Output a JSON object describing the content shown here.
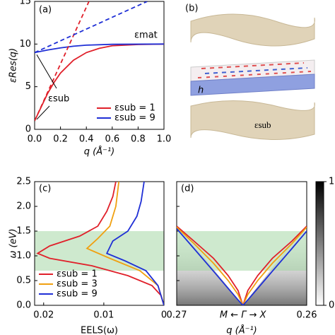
{
  "chart_data": [
    {
      "type": "line",
      "label": "(a)",
      "xlabel": "q (Å⁻¹)",
      "ylabel": "εRes(q)",
      "xlim": [
        0,
        1
      ],
      "ylim": [
        0,
        15
      ],
      "xticks": [
        {
          "value": 0,
          "label": "0.0"
        },
        0.2,
        0.4,
        0.6,
        0.8,
        {
          "value": 1,
          "label": "1.0"
        }
      ],
      "yticks": [
        0,
        5,
        10,
        15
      ],
      "annotations": [
        "εmat",
        "εsub"
      ],
      "legend": "lower right",
      "series": [
        {
          "name": "εsub = 1",
          "color": "#e0202a",
          "x": [
            0,
            0.05,
            0.1,
            0.15,
            0.2,
            0.3,
            0.4,
            0.5,
            0.6,
            0.8,
            1.0
          ],
          "values": [
            1,
            2.6,
            4.2,
            5.5,
            6.6,
            8.1,
            9.0,
            9.5,
            9.8,
            9.95,
            10
          ]
        },
        {
          "name": "εsub = 9",
          "color": "#1f2fd6",
          "x": [
            0,
            0.1,
            0.2,
            0.3,
            0.4,
            0.6,
            1.0
          ],
          "values": [
            9,
            9.3,
            9.55,
            9.75,
            9.87,
            9.97,
            10
          ]
        },
        {
          "color": "#e0202a",
          "dashed": true,
          "x": [
            0,
            0.42
          ],
          "values": [
            1,
            15
          ]
        },
        {
          "color": "#1f2fd6",
          "dashed": true,
          "x": [
            0,
            0.87
          ],
          "values": [
            9,
            15
          ]
        }
      ]
    },
    {
      "type": "line",
      "label": "(c)",
      "xlabel": "EELS(ω)",
      "ylabel": "ω (eV)",
      "xlim": [
        0.0215,
        0
      ],
      "ylim": [
        0,
        2.5
      ],
      "xticks": [
        0.02,
        0.01,
        0
      ],
      "yticks": [
        {
          "value": 0,
          "label": "0.0"
        },
        0.5,
        {
          "value": 1,
          "label": "1.0"
        },
        1.5,
        {
          "value": 2,
          "label": "2.0"
        },
        2.5
      ],
      "band": [
        0.7,
        1.5
      ],
      "legend": "lower left",
      "series": [
        {
          "name": "εsub = 1",
          "color": "#e0202a",
          "x": [
            0,
            0.0005,
            0.002,
            0.006,
            0.012,
            0.019,
            0.021,
            0.019,
            0.014,
            0.011,
            0.0095,
            0.0085,
            0.008
          ],
          "values": [
            0,
            0.2,
            0.4,
            0.6,
            0.8,
            0.95,
            1.05,
            1.2,
            1.4,
            1.6,
            1.9,
            2.2,
            2.5
          ]
        },
        {
          "name": "εsub = 3",
          "color": "#f0a010",
          "x": [
            0,
            0.001,
            0.004,
            0.009,
            0.0128,
            0.011,
            0.009,
            0.008,
            0.0075
          ],
          "values": [
            0,
            0.4,
            0.7,
            0.95,
            1.15,
            1.35,
            1.6,
            2.0,
            2.5
          ]
        },
        {
          "name": "εsub = 9",
          "color": "#1f2fd6",
          "x": [
            0,
            0.001,
            0.003,
            0.0065,
            0.0095,
            0.0085,
            0.006,
            0.0045,
            0.0038,
            0.0033
          ],
          "values": [
            0,
            0.4,
            0.7,
            0.9,
            1.05,
            1.3,
            1.5,
            1.8,
            2.1,
            2.5
          ]
        }
      ]
    },
    {
      "type": "line",
      "label": "(d)",
      "xlabel": "q (Å⁻¹)",
      "xcenter_label": "M ← Γ → X",
      "xlim": [
        -0.27,
        0.26
      ],
      "ylim": [
        0,
        2.5
      ],
      "xticks": [
        {
          "value": -0.27,
          "label": "0.27"
        },
        0.26
      ],
      "yticks": [
        0,
        0.5,
        1,
        1.5,
        2,
        2.5
      ],
      "band": [
        0.7,
        1.5
      ],
      "colorbar": {
        "ticks": [
          0,
          1
        ]
      },
      "series": [
        {
          "color": "#e0202a",
          "x": [
            -0.27,
            -0.2,
            -0.12,
            -0.06,
            -0.02,
            0,
            0.02,
            0.06,
            0.12,
            0.2,
            0.26
          ],
          "values": [
            1.6,
            1.3,
            0.95,
            0.6,
            0.3,
            0,
            0.3,
            0.6,
            0.95,
            1.3,
            1.6
          ]
        },
        {
          "color": "#f0a010",
          "x": [
            -0.27,
            -0.2,
            -0.12,
            -0.06,
            -0.02,
            0,
            0.02,
            0.06,
            0.12,
            0.2,
            0.26
          ],
          "values": [
            1.58,
            1.25,
            0.85,
            0.5,
            0.22,
            0,
            0.22,
            0.5,
            0.85,
            1.25,
            1.58
          ]
        },
        {
          "color": "#1f2fd6",
          "x": [
            -0.27,
            -0.2,
            -0.12,
            -0.06,
            -0.02,
            0,
            0.02,
            0.06,
            0.12,
            0.2,
            0.26
          ],
          "values": [
            1.55,
            1.15,
            0.69,
            0.34,
            0.11,
            0,
            0.11,
            0.34,
            0.69,
            1.15,
            1.5
          ]
        }
      ]
    }
  ],
  "diagram": {
    "label": "(b)",
    "thickness": "h",
    "substrate": "εsub"
  }
}
